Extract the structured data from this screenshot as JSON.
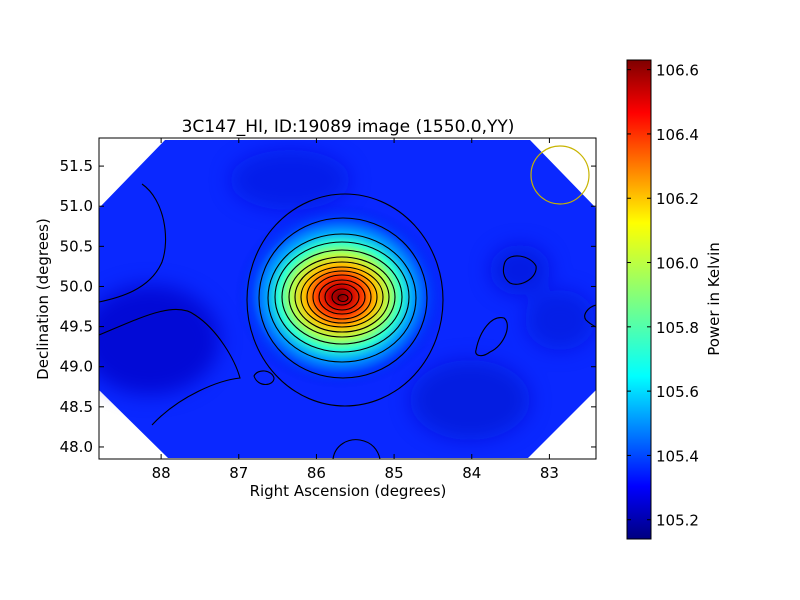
{
  "chart_data": {
    "type": "heatmap",
    "title": "3C147_HI, ID:19089 image (1550.0,YY)",
    "xlabel": "Right Ascension (degrees)",
    "ylabel": "Declination (degrees)",
    "xlim": [
      88.8,
      82.4
    ],
    "ylim": [
      47.85,
      51.85
    ],
    "x_inverted": true,
    "x_ticks": [
      "88",
      "87",
      "86",
      "85",
      "84",
      "83"
    ],
    "y_ticks": [
      "48.0",
      "48.5",
      "49.0",
      "49.5",
      "50.0",
      "50.5",
      "51.0",
      "51.5"
    ],
    "colorbar": {
      "label": "Power in Kelvin",
      "range": [
        105.14,
        106.63
      ],
      "ticks": [
        "105.2",
        "105.4",
        "105.6",
        "105.8",
        "106.0",
        "106.2",
        "106.4",
        "106.6"
      ],
      "colormap": "jet"
    },
    "peak": {
      "ra": 85.7,
      "dec": 49.87,
      "value": 106.62
    },
    "background_level": 105.3,
    "beam": {
      "ra": 83.0,
      "dec": 51.4,
      "radius_deg": 0.37,
      "color": "#c8b400"
    },
    "grid": false,
    "contours": true,
    "contour_count": 14
  }
}
